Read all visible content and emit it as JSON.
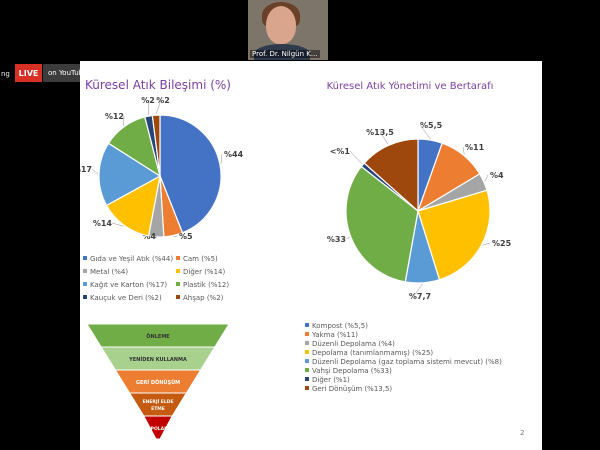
{
  "meeting": {
    "participant_name": "Prof. Dr. Nilgün K...",
    "left_edge_text": "ng"
  },
  "stream": {
    "live_label": "LIVE",
    "platform_label": "on YouTube",
    "caret": "▾"
  },
  "slide": {
    "page_number": "2",
    "pyramid_labels": [
      "ÖNLEME",
      "YENİDEN KULLANMA",
      "GERİ DÖNÜŞÜM",
      "ENERJİ ELDE ETME",
      "DEPOLAMA"
    ],
    "pyramid_colors": [
      "#70ad47",
      "#a9d18e",
      "#ed7d31",
      "#c55a11",
      "#c00000"
    ]
  },
  "chart_data": [
    {
      "type": "pie",
      "title": "Küresel Atık Bileşimi (%)",
      "categories": [
        "Gıda ve Yeşil Atık (%44)",
        "Cam (%5)",
        "Metal (%4)",
        "Diğer (%14)",
        "Kağıt ve Karton (%17)",
        "Plastik (%12)",
        "Kauçuk ve Deri (%2)",
        "Ahşap (%2)"
      ],
      "values": [
        44,
        5,
        4,
        14,
        17,
        12,
        2,
        2
      ],
      "data_labels": [
        "%44",
        "%5",
        "%4",
        "%14",
        "%17",
        "%12",
        "%2",
        "%2"
      ],
      "colors": [
        "#4472c4",
        "#ed7d31",
        "#a5a5a5",
        "#ffc000",
        "#5b9bd5",
        "#70ad47",
        "#264478",
        "#9e480e"
      ],
      "legend_position": "bottom"
    },
    {
      "type": "pie",
      "title": "Küresel Atık Yönetimi ve Bertarafı",
      "categories": [
        "Kompost (%5,5)",
        "Yakma (%11)",
        "Düzenli Depolama (%4)",
        "Depolama (tanımlanmamış) (%25)",
        "Düzenli Depolama (gaz toplama sistemi mevcut) (%8)",
        "Vahşi Depolama (%33)",
        "Diğer (%1)",
        "Geri Dönüşüm (%13,5)"
      ],
      "values": [
        5.5,
        11,
        4,
        25,
        7.7,
        33,
        1,
        13.5
      ],
      "data_labels": [
        "%5,5",
        "%11",
        "%4",
        "%25",
        "%7,7",
        "%33",
        "<%1",
        "%13,5"
      ],
      "colors": [
        "#4472c4",
        "#ed7d31",
        "#a5a5a5",
        "#ffc000",
        "#5b9bd5",
        "#70ad47",
        "#264478",
        "#9e480e"
      ],
      "legend_position": "bottom"
    }
  ]
}
